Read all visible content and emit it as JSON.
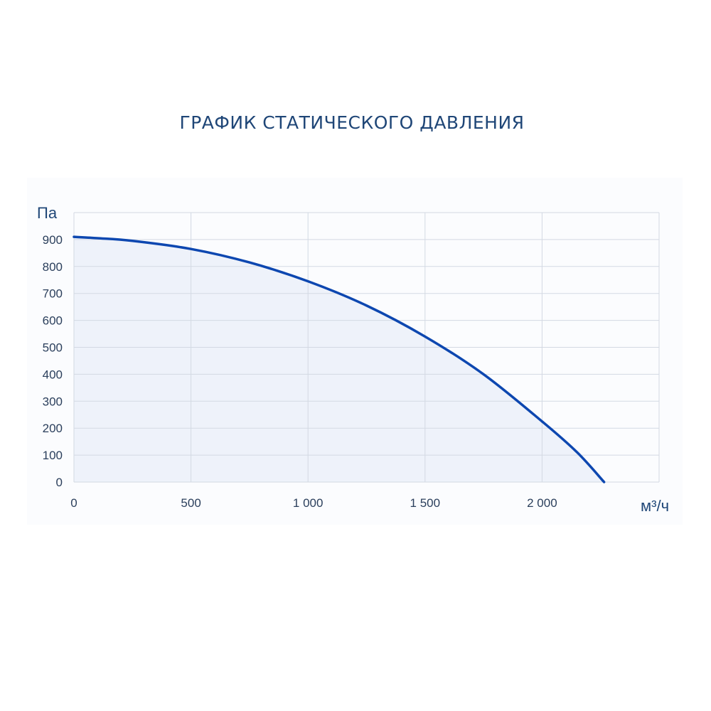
{
  "chart_data": {
    "type": "area",
    "title": "ГРАФИК СТАТИЧЕСКОГО ДАВЛЕНИЯ",
    "ylabel": "Па",
    "xlabel": "м³/ч",
    "xlim": [
      0,
      2500
    ],
    "ylim": [
      0,
      1000
    ],
    "grid": true,
    "x_ticks": [
      0,
      500,
      1000,
      1500,
      2000
    ],
    "x_tick_labels": [
      "0",
      "500",
      "1 000",
      "1 500",
      "2 000"
    ],
    "y_ticks": [
      0,
      100,
      200,
      300,
      400,
      500,
      600,
      700,
      800,
      900
    ],
    "y_tick_labels": [
      "0",
      "100",
      "200",
      "300",
      "400",
      "500",
      "600",
      "700",
      "800",
      "900"
    ],
    "series": [
      {
        "x": [
          0,
          100,
          250,
          500,
          750,
          1000,
          1250,
          1500,
          1750,
          2000,
          2150,
          2265
        ],
        "y": [
          910,
          905,
          895,
          865,
          815,
          745,
          655,
          540,
          400,
          225,
          110,
          0
        ]
      }
    ],
    "colors": {
      "line": "#0d47b0",
      "fill": "#eef2fa",
      "grid": "#d3d9e3",
      "title": "#1f4677"
    }
  }
}
